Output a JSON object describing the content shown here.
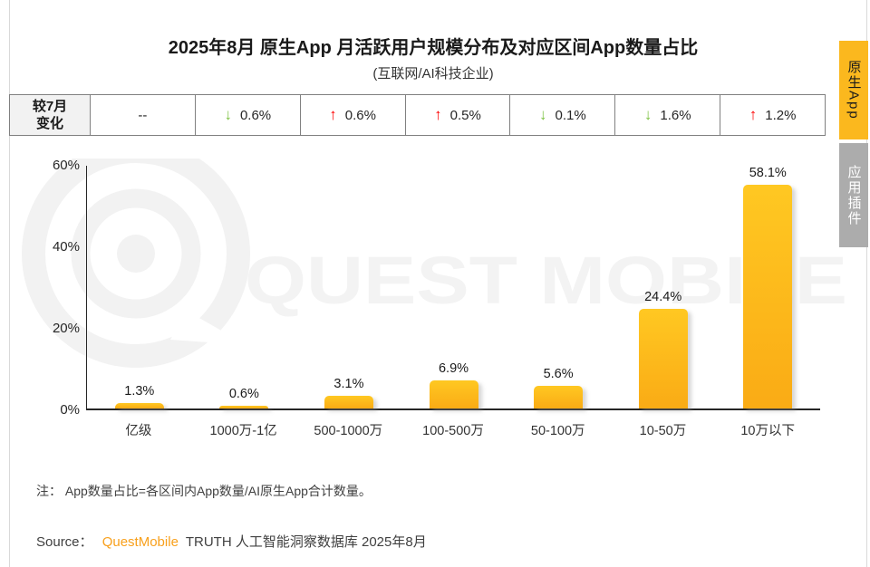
{
  "title": "2025年8月 原生App 月活跃用户规模分布及对应区间App数量占比",
  "subtitle": "(互联网/AI科技企业)",
  "side_tabs": {
    "native_app": "原生App",
    "app_plugin": "应用插件"
  },
  "change_table": {
    "header_line1": "较7月",
    "header_line2": "变化",
    "cells": [
      {
        "direction": "none",
        "value": "--"
      },
      {
        "direction": "down",
        "value": "0.6%"
      },
      {
        "direction": "up",
        "value": "0.6%"
      },
      {
        "direction": "up",
        "value": "0.5%"
      },
      {
        "direction": "down",
        "value": "0.1%"
      },
      {
        "direction": "down",
        "value": "1.6%"
      },
      {
        "direction": "up",
        "value": "1.2%"
      }
    ]
  },
  "chart_data": {
    "type": "bar",
    "title": "2025年8月 原生App 月活跃用户规模分布及对应区间App数量占比",
    "subtitle": "(互联网/AI科技企业)",
    "categories": [
      "亿级",
      "1000万-1亿",
      "500-1000万",
      "100-500万",
      "50-100万",
      "10-50万",
      "10万以下"
    ],
    "values": [
      1.3,
      0.6,
      3.1,
      6.9,
      5.6,
      24.4,
      58.1
    ],
    "data_labels": [
      "1.3%",
      "0.6%",
      "3.1%",
      "6.9%",
      "5.6%",
      "24.4%",
      "58.1%"
    ],
    "change_vs_prev_month": [
      "--",
      "-0.6%",
      "+0.6%",
      "+0.5%",
      "-0.1%",
      "-1.6%",
      "+1.2%"
    ],
    "yticks": [
      "0%",
      "20%",
      "40%",
      "60%"
    ],
    "ylim": [
      0,
      60
    ],
    "xlabel": "",
    "ylabel": "",
    "grid": false,
    "legend": "none"
  },
  "watermark": {
    "text": "QUEST MOBILE"
  },
  "note": "注： App数量占比=各区间内App数量/AI原生App合计数量。",
  "source": {
    "prefix": "Source：",
    "brand": "QuestMobile",
    "suffix": "TRUTH 人工智能洞察数据库 2025年8月"
  },
  "colors": {
    "bar_top": "#ffc822",
    "bar_bottom": "#faab15",
    "up_arrow": "#fe0000",
    "down_arrow": "#7dc242",
    "tab_active": "#fbb81e",
    "tab_inactive": "#acacac",
    "brand_orange": "#f8a01c"
  }
}
